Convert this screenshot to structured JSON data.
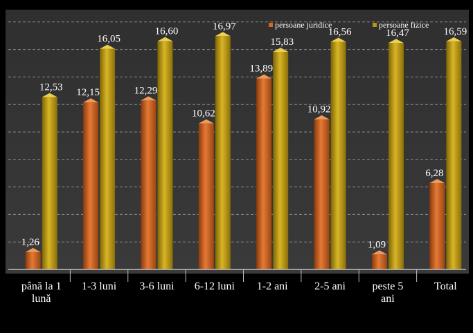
{
  "chart_data": {
    "type": "bar",
    "categories": [
      "până la 1 lună",
      "1-3 luni",
      "3-6 luni",
      "6-12 luni",
      "1-2 ani",
      "2-5 ani",
      "peste 5 ani",
      "Total"
    ],
    "category_lines": [
      [
        "până la 1",
        "lună"
      ],
      [
        "1-3 luni"
      ],
      [
        "3-6 luni"
      ],
      [
        "6-12 luni"
      ],
      [
        "1-2 ani"
      ],
      [
        "2-5 ani"
      ],
      [
        "peste 5",
        "ani"
      ],
      [
        "Total"
      ]
    ],
    "series": [
      {
        "name": "persoane juridice",
        "values": [
          1.26,
          12.15,
          12.29,
          10.62,
          13.89,
          10.92,
          1.09,
          6.28
        ],
        "labels": [
          "1,26",
          "12,15",
          "12,29",
          "10,62",
          "13,89",
          "10,92",
          "1,09",
          "6,28"
        ],
        "color": "#d2691e"
      },
      {
        "name": "persoane fizice",
        "values": [
          12.53,
          16.05,
          16.6,
          16.97,
          15.83,
          16.56,
          16.47,
          16.59
        ],
        "labels": [
          "12,53",
          "16,05",
          "16,60",
          "16,97",
          "15,83",
          "16,56",
          "16,47",
          "16,59"
        ],
        "color": "#b8960c"
      }
    ],
    "ylim": [
      0,
      18
    ],
    "grid": true,
    "legend": "top-right",
    "title": "",
    "xlabel": "",
    "ylabel": ""
  }
}
